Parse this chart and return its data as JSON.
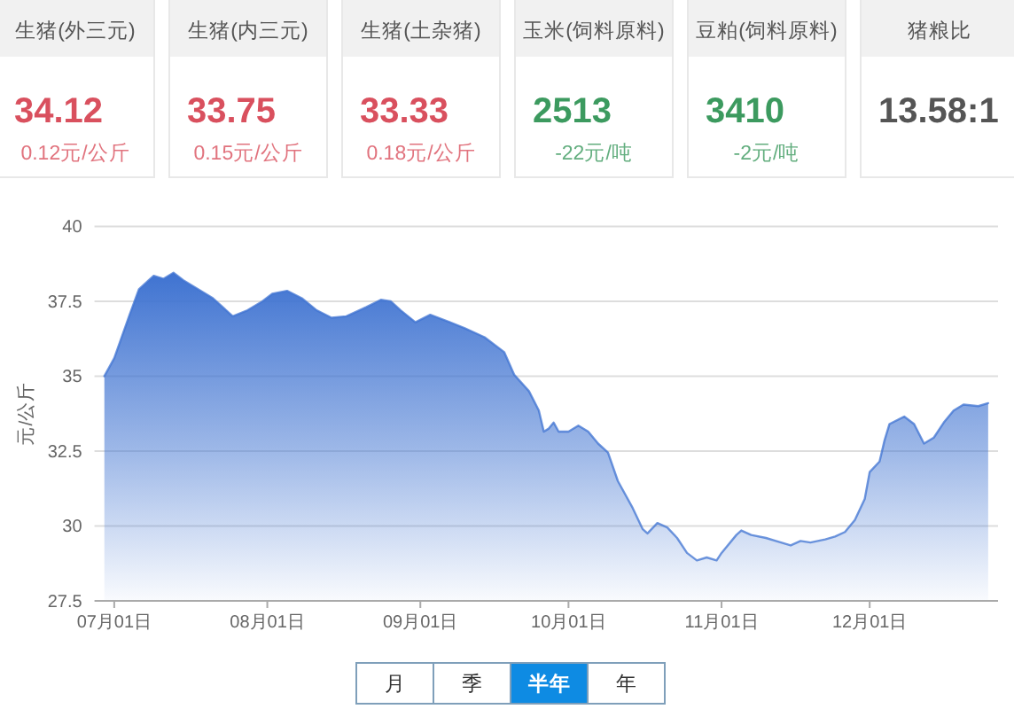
{
  "chart_data": [
    {
      "type": "other",
      "categories": [
        "生猪(外三元)",
        "生猪(内三元)",
        "生猪(土杂猪)",
        "玉米(饲料原料)",
        "豆粕(饲料原料)",
        "猪粮比"
      ],
      "value_labels": [
        "34.12",
        "33.75",
        "33.33",
        "2513",
        "3410",
        "13.58:1"
      ],
      "annotations": [
        "0.12元/公斤",
        "0.15元/公斤",
        "0.18元/公斤",
        "-22元/吨",
        "-2元/吨"
      ],
      "colors": [
        "#d9505e",
        "#d9505e",
        "#d9505e",
        "#3c9a5f",
        "#3c9a5f",
        "#555555"
      ]
    },
    {
      "type": "area",
      "ylabel": "元/公斤",
      "x": [
        "--06-29",
        "--07-01",
        "--07-04",
        "--07-06",
        "--07-08",
        "--07-09",
        "--07-11",
        "--07-13",
        "--07-15",
        "--07-19",
        "--07-21",
        "--07-23",
        "--07-25",
        "--07-28",
        "--07-31",
        "--08-02",
        "--08-05",
        "--08-08",
        "--08-11",
        "--08-14",
        "--08-17",
        "--08-21",
        "--08-24",
        "--08-26",
        "--08-28",
        "--08-31",
        "--09-03",
        "--09-07",
        "--09-10",
        "--09-14",
        "--09-18",
        "--09-20",
        "--09-23",
        "--09-25",
        "--09-26",
        "--09-27",
        "--09-28",
        "--09-29",
        "--10-01",
        "--10-03",
        "--10-05",
        "--10-07",
        "--10-09",
        "--10-11",
        "--10-14",
        "--10-16",
        "--10-17",
        "--10-19",
        "--10-21",
        "--10-23",
        "--10-25",
        "--10-27",
        "--10-29",
        "--10-31",
        "--11-01",
        "--11-04",
        "--11-05",
        "--11-07",
        "--11-10",
        "--11-12",
        "--11-15",
        "--11-17",
        "--11-19",
        "--11-22",
        "--11-24",
        "--11-26",
        "--11-28",
        "--11-30",
        "--12-01",
        "--12-03",
        "--12-04",
        "--12-05",
        "--12-08",
        "--12-10",
        "--12-12",
        "--12-14",
        "--12-16",
        "--12-18",
        "--12-20",
        "--12-23",
        "--12-25"
      ],
      "series": [
        {
          "color": "#3f73d1",
          "values": [
            35.0,
            35.6,
            37.0,
            37.9,
            38.2,
            38.35,
            38.25,
            38.45,
            38.2,
            37.8,
            37.6,
            37.3,
            37.0,
            37.2,
            37.5,
            37.75,
            37.85,
            37.6,
            37.2,
            36.95,
            37.0,
            37.3,
            37.55,
            37.5,
            37.2,
            36.8,
            37.05,
            36.8,
            36.6,
            36.3,
            35.8,
            35.05,
            34.5,
            33.85,
            33.15,
            33.25,
            33.45,
            33.15,
            33.15,
            33.35,
            33.15,
            32.75,
            32.45,
            31.5,
            30.6,
            29.9,
            29.75,
            30.1,
            29.95,
            29.6,
            29.1,
            28.85,
            28.95,
            28.85,
            29.1,
            29.7,
            29.85,
            29.7,
            29.6,
            29.5,
            29.35,
            29.5,
            29.45,
            29.55,
            29.65,
            29.8,
            30.2,
            30.9,
            31.8,
            32.15,
            32.85,
            33.4,
            33.65,
            33.4,
            32.75,
            32.95,
            33.45,
            33.85,
            34.05,
            34.0,
            34.1
          ]
        }
      ],
      "xlim": [
        "--06-27",
        "--12-27"
      ],
      "xticks": [
        {
          "value": "--07-01",
          "label": "07月01日"
        },
        {
          "value": "--08-01",
          "label": "08月01日"
        },
        {
          "value": "--09-01",
          "label": "09月01日"
        },
        {
          "value": "--10-01",
          "label": "10月01日"
        },
        {
          "value": "--11-01",
          "label": "11月01日"
        },
        {
          "value": "--12-01",
          "label": "12月01日"
        }
      ],
      "ylim": [
        27.5,
        40
      ],
      "yticks": [
        27.5,
        30,
        32.5,
        35,
        37.5,
        40
      ],
      "grid": "y"
    },
    {
      "type": "other",
      "categories": [
        "月",
        "季",
        "半年",
        "年"
      ],
      "colors": [
        "#ffffff",
        "#ffffff",
        "#0e8be3",
        "#ffffff"
      ]
    }
  ]
}
